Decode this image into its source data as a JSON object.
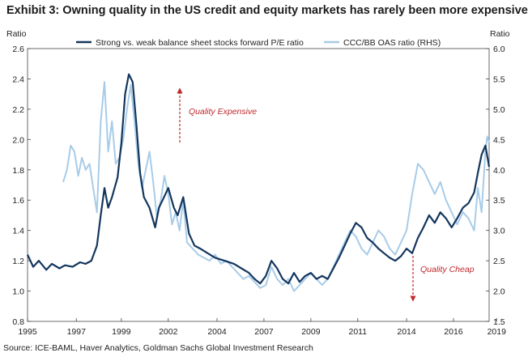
{
  "title": "Exhibit 3: Owning quality in the US credit and equity markets has rarely been more expensive",
  "source": "Source: ICE-BAML, Haver Analytics, Goldman Sachs Global Investment Research",
  "colors": {
    "pe": "#14365e",
    "oas": "#a8cce8",
    "annotation": "#c0282d",
    "axis": "#444444"
  },
  "chart_data": {
    "type": "line",
    "title": "Exhibit 3: Owning quality in the US credit and equity markets has rarely been more expensive",
    "ylabel_left": "Ratio",
    "ylabel_right": "Ratio",
    "xlim": [
      1995,
      2019.6
    ],
    "ylim_left": [
      0.8,
      2.6
    ],
    "ylim_right": [
      1.5,
      6.0
    ],
    "x_ticks": [
      {
        "value": 1995.0,
        "label": "1995"
      },
      {
        "value": 1997.6,
        "label": "1997"
      },
      {
        "value": 2000.0,
        "label": "1999"
      },
      {
        "value": 2002.5,
        "label": "2002"
      },
      {
        "value": 2005.1,
        "label": "2004"
      },
      {
        "value": 2007.6,
        "label": "2007"
      },
      {
        "value": 2010.1,
        "label": "2009"
      },
      {
        "value": 2012.6,
        "label": "2011"
      },
      {
        "value": 2015.2,
        "label": "2014"
      },
      {
        "value": 2017.7,
        "label": "2016"
      },
      {
        "value": 2020.0,
        "label": "2019"
      }
    ],
    "y_ticks_left": [
      "0.8",
      "1.0",
      "1.2",
      "1.4",
      "1.6",
      "1.8",
      "2.0",
      "2.2",
      "2.4",
      "2.6"
    ],
    "y_ticks_right": [
      "1.5",
      "2.0",
      "2.5",
      "3.0",
      "3.5",
      "4.0",
      "4.5",
      "5.0",
      "5.5",
      "6.0"
    ],
    "legend_position": "top",
    "series": [
      {
        "name": "Strong vs. weak balance sheet stocks forward P/E ratio",
        "axis": "left",
        "points": [
          [
            1995.0,
            1.24
          ],
          [
            1995.3,
            1.16
          ],
          [
            1995.6,
            1.2
          ],
          [
            1996.0,
            1.14
          ],
          [
            1996.3,
            1.18
          ],
          [
            1996.7,
            1.15
          ],
          [
            1997.0,
            1.17
          ],
          [
            1997.4,
            1.16
          ],
          [
            1997.8,
            1.19
          ],
          [
            1998.1,
            1.18
          ],
          [
            1998.4,
            1.2
          ],
          [
            1998.7,
            1.3
          ],
          [
            1998.9,
            1.5
          ],
          [
            1999.1,
            1.68
          ],
          [
            1999.3,
            1.55
          ],
          [
            1999.5,
            1.62
          ],
          [
            1999.8,
            1.75
          ],
          [
            2000.0,
            1.98
          ],
          [
            2000.2,
            2.3
          ],
          [
            2000.4,
            2.43
          ],
          [
            2000.6,
            2.38
          ],
          [
            2000.8,
            2.1
          ],
          [
            2001.0,
            1.78
          ],
          [
            2001.2,
            1.62
          ],
          [
            2001.5,
            1.55
          ],
          [
            2001.8,
            1.42
          ],
          [
            2002.0,
            1.55
          ],
          [
            2002.2,
            1.6
          ],
          [
            2002.5,
            1.68
          ],
          [
            2002.8,
            1.55
          ],
          [
            2003.0,
            1.5
          ],
          [
            2003.3,
            1.62
          ],
          [
            2003.6,
            1.38
          ],
          [
            2003.9,
            1.3
          ],
          [
            2004.2,
            1.28
          ],
          [
            2004.6,
            1.25
          ],
          [
            2005.0,
            1.22
          ],
          [
            2005.5,
            1.2
          ],
          [
            2006.0,
            1.18
          ],
          [
            2006.4,
            1.15
          ],
          [
            2006.8,
            1.12
          ],
          [
            2007.1,
            1.08
          ],
          [
            2007.4,
            1.05
          ],
          [
            2007.7,
            1.1
          ],
          [
            2008.0,
            1.2
          ],
          [
            2008.3,
            1.15
          ],
          [
            2008.6,
            1.08
          ],
          [
            2008.9,
            1.05
          ],
          [
            2009.2,
            1.12
          ],
          [
            2009.5,
            1.06
          ],
          [
            2009.8,
            1.1
          ],
          [
            2010.1,
            1.12
          ],
          [
            2010.4,
            1.08
          ],
          [
            2010.7,
            1.1
          ],
          [
            2011.0,
            1.08
          ],
          [
            2011.3,
            1.15
          ],
          [
            2011.6,
            1.22
          ],
          [
            2011.9,
            1.3
          ],
          [
            2012.2,
            1.38
          ],
          [
            2012.5,
            1.45
          ],
          [
            2012.8,
            1.42
          ],
          [
            2013.1,
            1.35
          ],
          [
            2013.4,
            1.32
          ],
          [
            2013.7,
            1.28
          ],
          [
            2014.0,
            1.25
          ],
          [
            2014.3,
            1.22
          ],
          [
            2014.6,
            1.2
          ],
          [
            2014.9,
            1.23
          ],
          [
            2015.2,
            1.28
          ],
          [
            2015.5,
            1.25
          ],
          [
            2015.8,
            1.35
          ],
          [
            2016.1,
            1.42
          ],
          [
            2016.4,
            1.5
          ],
          [
            2016.7,
            1.45
          ],
          [
            2017.0,
            1.52
          ],
          [
            2017.3,
            1.48
          ],
          [
            2017.6,
            1.42
          ],
          [
            2017.9,
            1.48
          ],
          [
            2018.2,
            1.55
          ],
          [
            2018.5,
            1.58
          ],
          [
            2018.8,
            1.65
          ],
          [
            2019.0,
            1.78
          ],
          [
            2019.2,
            1.9
          ],
          [
            2019.4,
            1.96
          ],
          [
            2019.6,
            1.82
          ]
        ]
      },
      {
        "name": "CCC/BB OAS ratio (RHS)",
        "axis": "right",
        "points": [
          [
            1996.9,
            3.8
          ],
          [
            1997.1,
            4.0
          ],
          [
            1997.3,
            4.4
          ],
          [
            1997.5,
            4.3
          ],
          [
            1997.7,
            3.9
          ],
          [
            1997.9,
            4.2
          ],
          [
            1998.1,
            4.0
          ],
          [
            1998.3,
            4.1
          ],
          [
            1998.5,
            3.7
          ],
          [
            1998.7,
            3.3
          ],
          [
            1998.9,
            4.8
          ],
          [
            1999.1,
            5.45
          ],
          [
            1999.3,
            4.3
          ],
          [
            1999.5,
            4.8
          ],
          [
            1999.7,
            4.1
          ],
          [
            1999.9,
            4.2
          ],
          [
            2000.1,
            4.5
          ],
          [
            2000.3,
            5.0
          ],
          [
            2000.5,
            5.4
          ],
          [
            2000.7,
            4.8
          ],
          [
            2000.9,
            4.1
          ],
          [
            2001.1,
            3.7
          ],
          [
            2001.3,
            4.0
          ],
          [
            2001.5,
            4.3
          ],
          [
            2001.7,
            3.8
          ],
          [
            2001.9,
            3.2
          ],
          [
            2002.1,
            3.5
          ],
          [
            2002.3,
            3.9
          ],
          [
            2002.5,
            3.6
          ],
          [
            2002.7,
            3.1
          ],
          [
            2002.9,
            3.3
          ],
          [
            2003.1,
            3.0
          ],
          [
            2003.3,
            3.5
          ],
          [
            2003.5,
            2.8
          ],
          [
            2003.8,
            2.7
          ],
          [
            2004.1,
            2.6
          ],
          [
            2004.4,
            2.55
          ],
          [
            2004.7,
            2.5
          ],
          [
            2005.0,
            2.6
          ],
          [
            2005.3,
            2.45
          ],
          [
            2005.6,
            2.5
          ],
          [
            2005.9,
            2.4
          ],
          [
            2006.2,
            2.3
          ],
          [
            2006.5,
            2.2
          ],
          [
            2006.8,
            2.25
          ],
          [
            2007.1,
            2.15
          ],
          [
            2007.4,
            2.05
          ],
          [
            2007.7,
            2.1
          ],
          [
            2008.0,
            2.4
          ],
          [
            2008.3,
            2.2
          ],
          [
            2008.6,
            2.1
          ],
          [
            2008.9,
            2.2
          ],
          [
            2009.2,
            2.0
          ],
          [
            2009.5,
            2.1
          ],
          [
            2009.8,
            2.2
          ],
          [
            2010.1,
            2.3
          ],
          [
            2010.4,
            2.2
          ],
          [
            2010.7,
            2.1
          ],
          [
            2011.0,
            2.2
          ],
          [
            2011.3,
            2.4
          ],
          [
            2011.6,
            2.6
          ],
          [
            2011.9,
            2.8
          ],
          [
            2012.2,
            3.0
          ],
          [
            2012.5,
            2.9
          ],
          [
            2012.8,
            2.7
          ],
          [
            2013.1,
            2.6
          ],
          [
            2013.4,
            2.8
          ],
          [
            2013.7,
            3.0
          ],
          [
            2014.0,
            2.9
          ],
          [
            2014.3,
            2.7
          ],
          [
            2014.6,
            2.6
          ],
          [
            2014.9,
            2.8
          ],
          [
            2015.2,
            3.0
          ],
          [
            2015.5,
            3.6
          ],
          [
            2015.8,
            4.1
          ],
          [
            2016.1,
            4.0
          ],
          [
            2016.4,
            3.8
          ],
          [
            2016.7,
            3.6
          ],
          [
            2017.0,
            3.8
          ],
          [
            2017.3,
            3.5
          ],
          [
            2017.6,
            3.3
          ],
          [
            2017.9,
            3.1
          ],
          [
            2018.2,
            3.3
          ],
          [
            2018.5,
            3.2
          ],
          [
            2018.8,
            3.0
          ],
          [
            2019.0,
            3.7
          ],
          [
            2019.2,
            3.3
          ],
          [
            2019.4,
            4.3
          ],
          [
            2019.5,
            4.55
          ],
          [
            2019.6,
            4.45
          ]
        ]
      }
    ],
    "annotations": [
      {
        "text": "Quality Expensive",
        "arrow": "up"
      },
      {
        "text": "Quality Cheap",
        "arrow": "down"
      }
    ]
  }
}
